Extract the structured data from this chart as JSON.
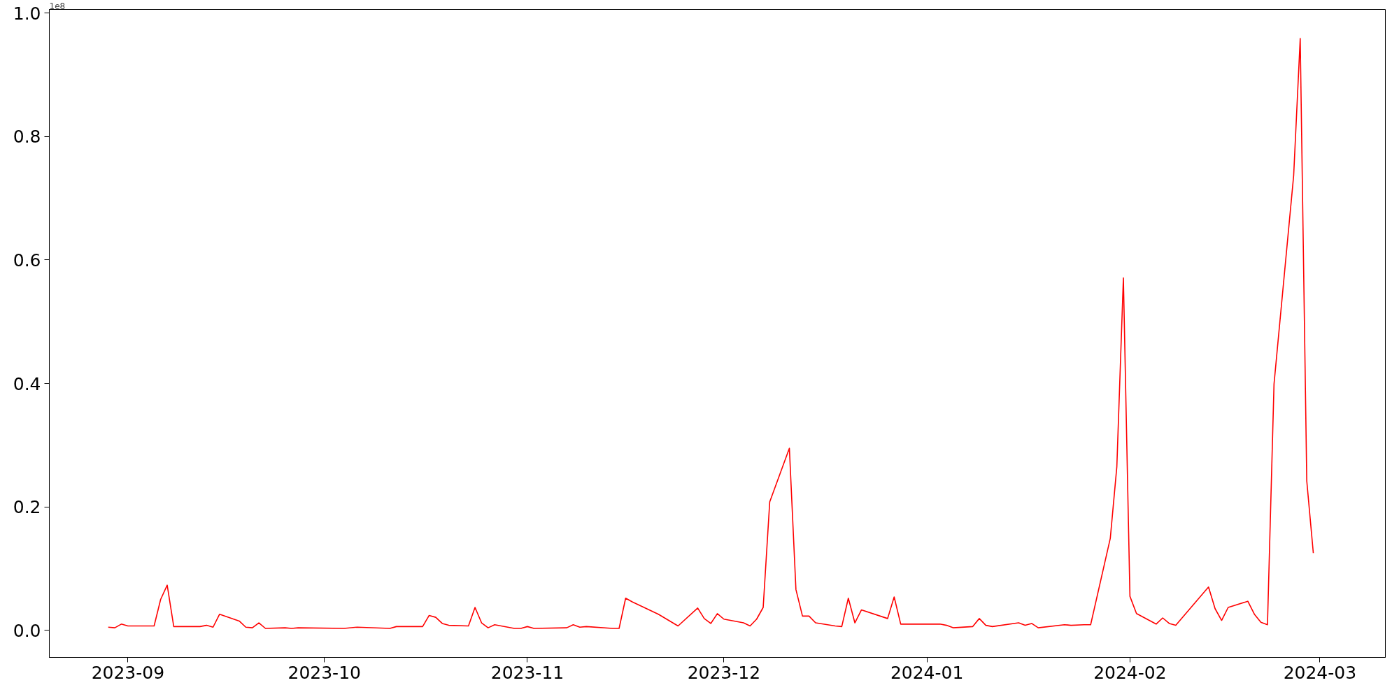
{
  "chart_data": {
    "type": "line",
    "x": [
      "2023-08-29",
      "2023-08-30",
      "2023-08-31",
      "2023-09-01",
      "2023-09-05",
      "2023-09-06",
      "2023-09-07",
      "2023-09-08",
      "2023-09-12",
      "2023-09-13",
      "2023-09-14",
      "2023-09-15",
      "2023-09-18",
      "2023-09-19",
      "2023-09-20",
      "2023-09-21",
      "2023-09-22",
      "2023-09-25",
      "2023-09-26",
      "2023-09-27",
      "2023-10-04",
      "2023-10-06",
      "2023-10-11",
      "2023-10-12",
      "2023-10-16",
      "2023-10-17",
      "2023-10-18",
      "2023-10-19",
      "2023-10-20",
      "2023-10-23",
      "2023-10-24",
      "2023-10-25",
      "2023-10-26",
      "2023-10-27",
      "2023-10-30",
      "2023-10-31",
      "2023-11-01",
      "2023-11-02",
      "2023-11-07",
      "2023-11-08",
      "2023-11-09",
      "2023-11-10",
      "2023-11-14",
      "2023-11-15",
      "2023-11-16",
      "2023-11-17",
      "2023-11-21",
      "2023-11-24",
      "2023-11-27",
      "2023-11-28",
      "2023-11-29",
      "2023-11-30",
      "2023-12-01",
      "2023-12-04",
      "2023-12-05",
      "2023-12-06",
      "2023-12-07",
      "2023-12-08",
      "2023-12-11",
      "2023-12-12",
      "2023-12-13",
      "2023-12-14",
      "2023-12-15",
      "2023-12-18",
      "2023-12-19",
      "2023-12-20",
      "2023-12-21",
      "2023-12-22",
      "2023-12-26",
      "2023-12-27",
      "2023-12-28",
      "2024-01-03",
      "2024-01-04",
      "2024-01-05",
      "2024-01-08",
      "2024-01-09",
      "2024-01-10",
      "2024-01-11",
      "2024-01-15",
      "2024-01-16",
      "2024-01-17",
      "2024-01-18",
      "2024-01-22",
      "2024-01-23",
      "2024-01-25",
      "2024-01-26",
      "2024-01-29",
      "2024-01-30",
      "2024-01-31",
      "2024-02-01",
      "2024-02-02",
      "2024-02-05",
      "2024-02-06",
      "2024-02-07",
      "2024-02-08",
      "2024-02-13",
      "2024-02-14",
      "2024-02-15",
      "2024-02-16",
      "2024-02-19",
      "2024-02-20",
      "2024-02-21",
      "2024-02-22",
      "2024-02-23",
      "2024-02-26",
      "2024-02-27",
      "2024-02-28",
      "2024-02-29"
    ],
    "series": [
      {
        "color": "#ff0000",
        "values": [
          0.005,
          0.004,
          0.01,
          0.007,
          0.007,
          0.05,
          0.073,
          0.006,
          0.006,
          0.008,
          0.005,
          0.026,
          0.015,
          0.005,
          0.004,
          0.012,
          0.003,
          0.004,
          0.003,
          0.004,
          0.003,
          0.005,
          0.003,
          0.006,
          0.006,
          0.024,
          0.021,
          0.011,
          0.008,
          0.007,
          0.037,
          0.012,
          0.004,
          0.009,
          0.003,
          0.003,
          0.006,
          0.003,
          0.004,
          0.009,
          0.005,
          0.006,
          0.003,
          0.003,
          0.052,
          0.046,
          0.026,
          0.007,
          0.036,
          0.019,
          0.011,
          0.027,
          0.018,
          0.012,
          0.007,
          0.018,
          0.037,
          0.208,
          0.295,
          0.066,
          0.023,
          0.023,
          0.012,
          0.007,
          0.006,
          0.052,
          0.012,
          0.033,
          0.019,
          0.054,
          0.01,
          0.01,
          0.008,
          0.004,
          0.006,
          0.019,
          0.008,
          0.006,
          0.012,
          0.008,
          0.011,
          0.004,
          0.009,
          0.008,
          0.009,
          0.009,
          0.149,
          0.265,
          0.571,
          0.055,
          0.027,
          0.01,
          0.02,
          0.011,
          0.008,
          0.07,
          0.035,
          0.016,
          0.037,
          0.047,
          0.026,
          0.013,
          0.009,
          0.399,
          0.737,
          0.959,
          0.242,
          0.125
        ]
      }
    ],
    "xlim": [
      "2023-08-20",
      "2024-03-11"
    ],
    "xticks": [
      "2023-09",
      "2023-10",
      "2023-11",
      "2023-12",
      "2024-01",
      "2024-02",
      "2024-03"
    ],
    "ylim": [
      -0.044,
      1.006
    ],
    "yticks": [
      {
        "value": 0,
        "label": "0.0"
      },
      0.2,
      0.4,
      0.6,
      0.8,
      {
        "value": 1,
        "label": "1.0"
      }
    ],
    "annotations": [
      "1e8"
    ],
    "grid": false,
    "marker": "none",
    "line_style": "solid"
  }
}
